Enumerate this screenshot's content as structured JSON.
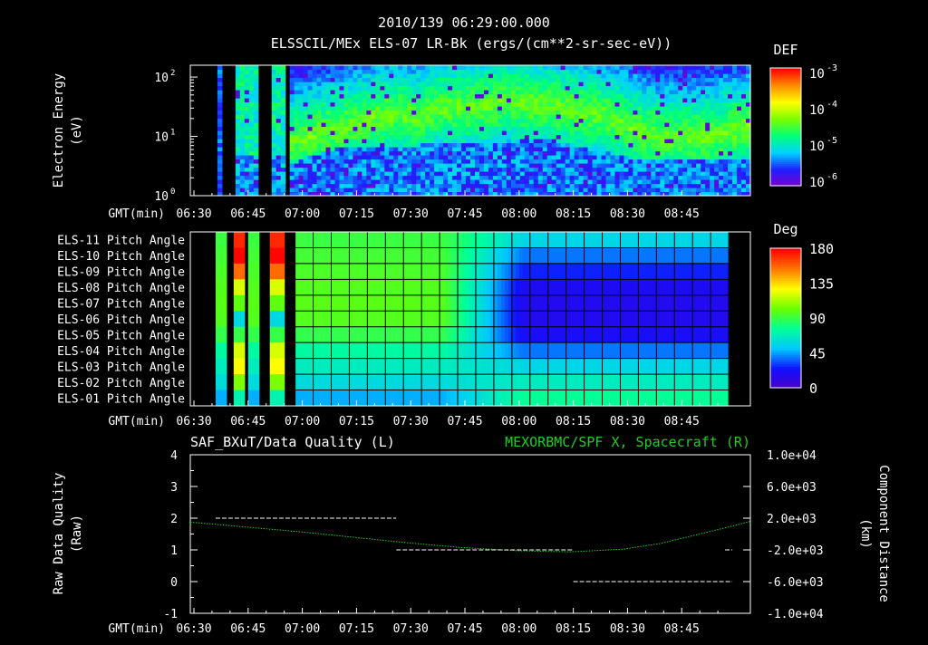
{
  "header": {
    "line1": "2010/139 06:29:00.000",
    "line2": "ELSSCIL/MEx ELS-07 LR-Bk  (ergs/(cm**2-sr-sec-eV))"
  },
  "time_axis": {
    "prefix": "GMT(min)",
    "ticks": [
      "06:30",
      "06:45",
      "07:00",
      "07:15",
      "07:30",
      "07:45",
      "08:00",
      "08:15",
      "08:30",
      "08:45"
    ],
    "range_min": [
      0,
      155
    ]
  },
  "colors": {
    "background": "#000000",
    "axis": "#ffffff",
    "grid": "#000000",
    "spacecraft_line": "#22cc22",
    "quality_dash": "#ffffff"
  },
  "chart_data": [
    {
      "type": "heatmap",
      "name": "spectrogram",
      "ylabel_line1": "Electron Energy",
      "ylabel_line2": "(eV)",
      "ylim_log10": [
        0,
        2.2
      ],
      "y_ticks": [
        {
          "label": "10",
          "exp": "0",
          "log10": 0
        },
        {
          "label": "10",
          "exp": "1",
          "log10": 1
        },
        {
          "label": "10",
          "exp": "2",
          "log10": 2
        }
      ],
      "colorbar": {
        "title": "DEF",
        "ticks": [
          {
            "label": "10",
            "exp": "-3"
          },
          {
            "label": "10",
            "exp": "-4"
          },
          {
            "label": "10",
            "exp": "-5"
          },
          {
            "label": "10",
            "exp": "-6"
          }
        ],
        "stops": [
          "#7a00c8",
          "#1f1fff",
          "#00d2ff",
          "#00ff7a",
          "#7aff00",
          "#ffff00",
          "#ff8c00",
          "#ff0000"
        ]
      },
      "segments": [
        {
          "t": [
            0,
            7
          ],
          "level": 0
        },
        {
          "t": [
            7,
            9
          ],
          "level": 1,
          "low_floor": true
        },
        {
          "t": [
            9,
            13
          ],
          "level": 0
        },
        {
          "t": [
            13,
            19
          ],
          "level": 2,
          "low_floor": true
        },
        {
          "t": [
            19,
            22
          ],
          "level": 0
        },
        {
          "t": [
            22,
            26
          ],
          "level": 2,
          "low_floor": true
        },
        {
          "t": [
            26,
            28
          ],
          "level": 0
        },
        {
          "t": [
            28,
            155
          ],
          "level": 3
        }
      ],
      "low_band_top_log10": [
        [
          28,
          0.55
        ],
        [
          40,
          0.8
        ],
        [
          60,
          0.85
        ],
        [
          78,
          0.9
        ],
        [
          100,
          0.95
        ],
        [
          125,
          0.6
        ],
        [
          155,
          0.6
        ]
      ],
      "peak_band_log10": [
        [
          28,
          0.9
        ],
        [
          50,
          1.3
        ],
        [
          58,
          1.4
        ],
        [
          62,
          1.3
        ],
        [
          70,
          1.5
        ],
        [
          78,
          1.5
        ],
        [
          88,
          1.6
        ],
        [
          100,
          1.5
        ],
        [
          112,
          1.4
        ],
        [
          120,
          1.2
        ],
        [
          128,
          1.0
        ],
        [
          145,
          1.0
        ],
        [
          155,
          1.2
        ]
      ]
    },
    {
      "type": "heatmap",
      "name": "pitch_angle",
      "rows": [
        "ELS-11 Pitch Angle",
        "ELS-10 Pitch Angle",
        "ELS-09 Pitch Angle",
        "ELS-08 Pitch Angle",
        "ELS-07 Pitch Angle",
        "ELS-06 Pitch Angle",
        "ELS-05 Pitch Angle",
        "ELS-04 Pitch Angle",
        "ELS-03 Pitch Angle",
        "ELS-02 Pitch Angle",
        "ELS-01 Pitch Angle"
      ],
      "colorbar": {
        "title": "Deg",
        "ticks": [
          "180",
          "135",
          "90",
          "45",
          "0"
        ],
        "range": [
          0,
          180
        ]
      },
      "dark_intervals_min": [
        [
          0,
          7
        ],
        [
          10,
          12
        ],
        [
          15,
          16
        ],
        [
          19,
          22
        ],
        [
          26,
          29
        ],
        [
          149,
          155
        ]
      ],
      "flare_intervals_min": [
        [
          12,
          15
        ],
        [
          22,
          26
        ]
      ],
      "row_base_deg": [
        92,
        94,
        96,
        98,
        99,
        98,
        90,
        75,
        68,
        60,
        48
      ],
      "row_late_deg": [
        58,
        40,
        28,
        20,
        18,
        18,
        22,
        40,
        58,
        68,
        78
      ],
      "transition_min": [
        70,
        92
      ],
      "grid_step_min": 5
    },
    {
      "type": "line",
      "name": "quality_and_position",
      "title_left": "SAF_BXuT/Data Quality (L)",
      "title_right": "MEXORBMC/SPF X, Spacecraft (R)",
      "ylabel_left_line1": "Raw Data Quality",
      "ylabel_left_line2": "(Raw)",
      "ylabel_right_line1": "Component Distance",
      "ylabel_right_line2": "(km)",
      "ylim_left": [
        -1,
        4
      ],
      "y_ticks_left": [
        "4",
        "3",
        "2",
        "1",
        "0",
        "-1"
      ],
      "ylim_right": [
        -10000,
        10000
      ],
      "y_ticks_right": [
        "1.0e+04",
        "6.0e+03",
        "2.0e+03",
        "-2.0e+03",
        "-6.0e+03",
        "-1.0e+04"
      ],
      "quality_segments": [
        {
          "t": [
            7,
            57
          ],
          "value": 2
        },
        {
          "t": [
            57,
            106
          ],
          "value": 1
        },
        {
          "t": [
            106,
            150
          ],
          "value": 0
        },
        {
          "t": [
            148,
            150
          ],
          "value": 1
        }
      ],
      "spacecraft_x_km": [
        [
          0,
          1500
        ],
        [
          15,
          900
        ],
        [
          30,
          300
        ],
        [
          45,
          -400
        ],
        [
          60,
          -1100
        ],
        [
          75,
          -1700
        ],
        [
          90,
          -2100
        ],
        [
          105,
          -2250
        ],
        [
          120,
          -1900
        ],
        [
          130,
          -1200
        ],
        [
          140,
          -100
        ],
        [
          150,
          1000
        ],
        [
          155,
          1600
        ]
      ]
    }
  ]
}
